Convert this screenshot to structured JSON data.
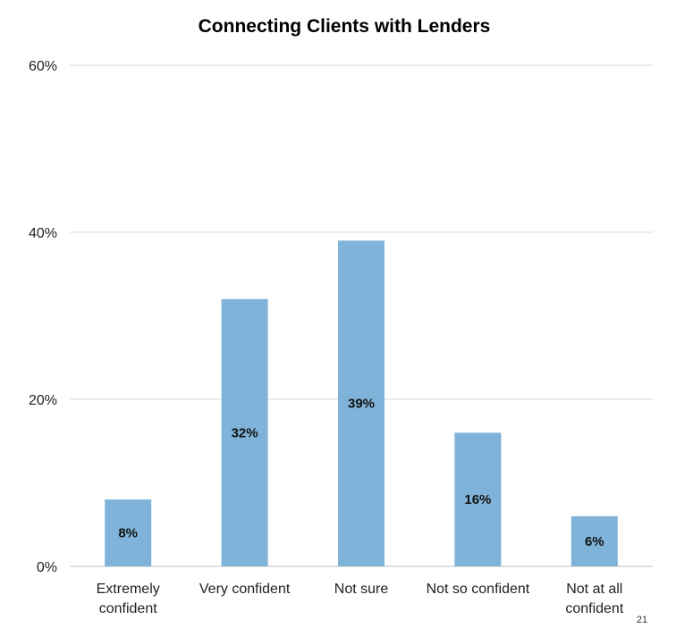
{
  "chart_data": {
    "type": "bar",
    "title": "Connecting Clients with Lenders",
    "categories": [
      [
        "Extremely",
        "confident"
      ],
      [
        "Very confident"
      ],
      [
        "Not sure"
      ],
      [
        "Not so confident"
      ],
      [
        "Not at all",
        "confident"
      ]
    ],
    "values": [
      8,
      32,
      39,
      16,
      6
    ],
    "data_labels": [
      "8%",
      "32%",
      "39%",
      "16%",
      "6%"
    ],
    "ylim": [
      0,
      60
    ],
    "yticks": [
      0,
      20,
      40,
      60
    ],
    "ytick_labels": [
      "0%",
      "20%",
      "40%",
      "60%"
    ],
    "grid": true,
    "legend": "none",
    "bar_color": "#7fb3d9"
  },
  "page_number": "21"
}
